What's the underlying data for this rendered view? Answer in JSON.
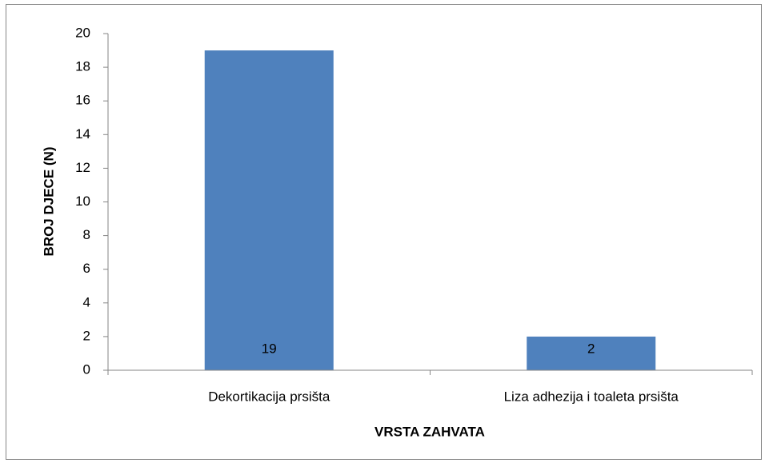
{
  "chart_data": {
    "type": "bar",
    "categories": [
      "Dekortikacija prsišta",
      "Liza adhezija i toaleta prsišta"
    ],
    "values": [
      19,
      2
    ],
    "color": "#4f81bd",
    "x_label": "VRSTA ZAHVATA",
    "y_label": "BROJ DJECE (N)",
    "ylim": [
      0,
      20
    ],
    "yticks": [
      0,
      2,
      4,
      6,
      8,
      10,
      12,
      14,
      16,
      18,
      20
    ],
    "data_labels": true
  }
}
